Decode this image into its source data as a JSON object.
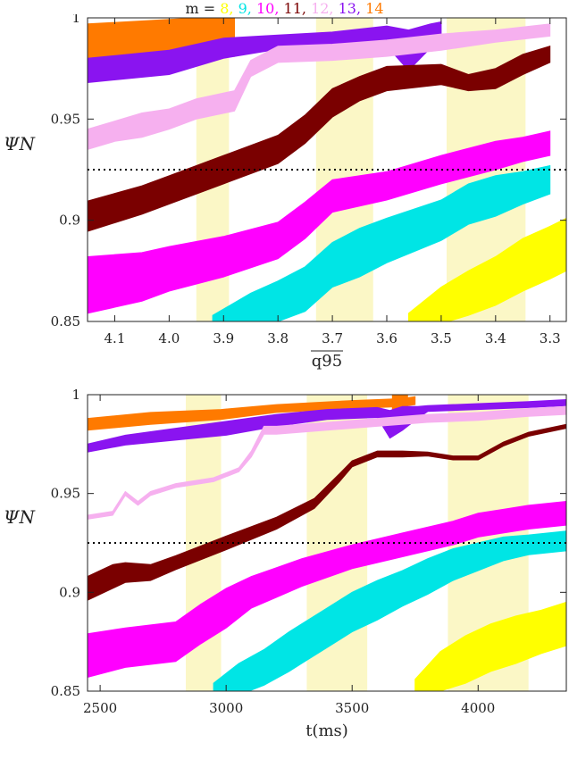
{
  "legend": {
    "prefix": "m =",
    "entries": [
      {
        "label": "8,",
        "color": "#ffff00"
      },
      {
        "label": "9,",
        "color": "#00e5e5"
      },
      {
        "label": "10,",
        "color": "#ff00ff"
      },
      {
        "label": "11,",
        "color": "#7a0000"
      },
      {
        "label": "12,",
        "color": "#f6b0ef"
      },
      {
        "label": "13,",
        "color": "#8a14f0"
      },
      {
        "label": "14",
        "color": "#ff7a00"
      }
    ]
  },
  "chart_data": [
    {
      "type": "area",
      "xlabel": "q95",
      "ylabel": "ΨN",
      "x_reversed": true,
      "xlim": [
        4.15,
        3.27
      ],
      "ylim": [
        0.85,
        1.0
      ],
      "x_ticks": [
        "4.1",
        "4.0",
        "3.9",
        "3.8",
        "3.7",
        "3.6",
        "3.5",
        "3.4",
        "3.3"
      ],
      "x_tick_values": [
        4.1,
        4.0,
        3.9,
        3.8,
        3.7,
        3.6,
        3.5,
        3.4,
        3.3
      ],
      "y_ticks": [
        "0.85",
        "0.9",
        "0.95",
        "1"
      ],
      "y_tick_values": [
        0.85,
        0.9,
        0.95,
        1.0
      ],
      "reference_line": 0.925,
      "shaded_x_ranges": [
        [
          3.95,
          3.89
        ],
        [
          3.73,
          3.625
        ],
        [
          3.49,
          3.345
        ]
      ],
      "series": [
        {
          "color": "#ff7a00",
          "x": [
            4.15,
            3.88
          ],
          "center": [
            0.987,
            0.991
          ],
          "width": [
            0.02,
            0.02
          ]
        },
        {
          "color": "#8a14f0",
          "x": [
            4.15,
            4.0,
            3.9,
            3.8,
            3.7,
            3.6,
            3.56,
            3.52,
            3.5
          ],
          "center": [
            0.974,
            0.978,
            0.985,
            0.988,
            0.99,
            0.991,
            0.984,
            0.991,
            0.995
          ],
          "width": [
            0.012,
            0.012,
            0.01,
            0.007,
            0.006,
            0.01,
            0.02,
            0.012,
            0.006
          ]
        },
        {
          "color": "#f6b0ef",
          "x": [
            4.15,
            4.1,
            4.05,
            4.0,
            3.95,
            3.88,
            3.85,
            3.8,
            3.7,
            3.6,
            3.5,
            3.4,
            3.3
          ],
          "center": [
            0.94,
            0.944,
            0.947,
            0.95,
            0.955,
            0.959,
            0.975,
            0.982,
            0.983,
            0.985,
            0.988,
            0.991,
            0.994
          ],
          "width": [
            0.01,
            0.01,
            0.012,
            0.01,
            0.01,
            0.01,
            0.008,
            0.008,
            0.008,
            0.008,
            0.008,
            0.006,
            0.006
          ]
        },
        {
          "color": "#7a0000",
          "x": [
            4.15,
            4.05,
            4.0,
            3.9,
            3.8,
            3.75,
            3.7,
            3.65,
            3.6,
            3.5,
            3.45,
            3.4,
            3.35,
            3.3
          ],
          "center": [
            0.902,
            0.91,
            0.915,
            0.925,
            0.935,
            0.945,
            0.958,
            0.965,
            0.97,
            0.972,
            0.968,
            0.97,
            0.977,
            0.982
          ],
          "width": [
            0.015,
            0.014,
            0.014,
            0.014,
            0.014,
            0.014,
            0.014,
            0.012,
            0.012,
            0.01,
            0.008,
            0.01,
            0.01,
            0.008
          ]
        },
        {
          "color": "#ff00ff",
          "x": [
            4.15,
            4.05,
            4.0,
            3.9,
            3.8,
            3.75,
            3.7,
            3.6,
            3.5,
            3.4,
            3.35,
            3.3
          ],
          "center": [
            0.868,
            0.872,
            0.876,
            0.882,
            0.89,
            0.9,
            0.912,
            0.917,
            0.925,
            0.932,
            0.935,
            0.938
          ],
          "width": [
            0.028,
            0.024,
            0.022,
            0.02,
            0.018,
            0.018,
            0.016,
            0.014,
            0.014,
            0.014,
            0.012,
            0.012
          ]
        },
        {
          "color": "#00e5e5",
          "x": [
            3.92,
            3.85,
            3.8,
            3.75,
            3.7,
            3.65,
            3.6,
            3.5,
            3.45,
            3.4,
            3.35,
            3.3
          ],
          "center": [
            0.848,
            0.856,
            0.86,
            0.866,
            0.878,
            0.884,
            0.89,
            0.9,
            0.908,
            0.912,
            0.916,
            0.92
          ],
          "width": [
            0.01,
            0.016,
            0.02,
            0.022,
            0.022,
            0.024,
            0.022,
            0.02,
            0.02,
            0.02,
            0.016,
            0.014
          ]
        },
        {
          "color": "#ffff00",
          "x": [
            3.56,
            3.5,
            3.45,
            3.4,
            3.35,
            3.3,
            3.27
          ],
          "center": [
            0.85,
            0.858,
            0.864,
            0.87,
            0.878,
            0.884,
            0.888
          ],
          "width": [
            0.008,
            0.018,
            0.022,
            0.024,
            0.026,
            0.026,
            0.026
          ]
        }
      ]
    },
    {
      "type": "area",
      "xlabel": "t(ms)",
      "ylabel": "ΨN",
      "xlim": [
        2450,
        4350
      ],
      "ylim": [
        0.85,
        1.0
      ],
      "x_ticks": [
        "2500",
        "3000",
        "3500",
        "4000"
      ],
      "x_tick_values": [
        2500,
        3000,
        3500,
        4000
      ],
      "y_ticks": [
        "0.85",
        "0.9",
        "0.95",
        "1"
      ],
      "y_tick_values": [
        0.85,
        0.9,
        0.95,
        1.0
      ],
      "reference_line": 0.925,
      "shaded_x_ranges": [
        [
          2840,
          2980
        ],
        [
          3320,
          3560
        ],
        [
          3880,
          4200
        ]
      ],
      "series": [
        {
          "color": "#ff7a00",
          "x": [
            2450,
            2700,
            2980,
            3200,
            3500,
            3700,
            3750
          ],
          "center": [
            0.985,
            0.988,
            0.99,
            0.993,
            0.995,
            0.996,
            0.997
          ],
          "width": [
            0.006,
            0.006,
            0.005,
            0.004,
            0.004,
            0.004,
            0.004
          ]
        },
        {
          "color": "#ff7a00",
          "x": [
            3660,
            3700,
            3720
          ],
          "center": [
            0.996,
            0.996,
            0.996
          ],
          "width": [
            0.012,
            0.012,
            0.012
          ]
        },
        {
          "color": "#8a14f0",
          "x": [
            2450,
            2600,
            2800,
            3000,
            3200,
            3400,
            3600,
            3650,
            3700,
            3760,
            3800,
            4000,
            4200,
            4350
          ],
          "center": [
            0.973,
            0.977,
            0.98,
            0.983,
            0.987,
            0.99,
            0.991,
            0.985,
            0.988,
            0.991,
            0.993,
            0.994,
            0.995,
            0.996
          ],
          "width": [
            0.004,
            0.005,
            0.006,
            0.007,
            0.006,
            0.005,
            0.005,
            0.014,
            0.012,
            0.006,
            0.003,
            0.003,
            0.003,
            0.003
          ]
        },
        {
          "color": "#f6b0ef",
          "x": [
            2450,
            2550,
            2600,
            2650,
            2700,
            2800,
            2950,
            3050,
            3100,
            3150,
            3200,
            3400,
            3600,
            3800,
            4000,
            4200,
            4350
          ],
          "center": [
            0.938,
            0.94,
            0.95,
            0.945,
            0.95,
            0.954,
            0.957,
            0.962,
            0.97,
            0.982,
            0.982,
            0.984,
            0.986,
            0.988,
            0.989,
            0.991,
            0.992
          ],
          "width": [
            0.002,
            0.002,
            0.002,
            0.002,
            0.002,
            0.002,
            0.002,
            0.002,
            0.003,
            0.004,
            0.004,
            0.004,
            0.004,
            0.004,
            0.004,
            0.004,
            0.004
          ]
        },
        {
          "color": "#7a0000",
          "x": [
            2450,
            2550,
            2600,
            2700,
            2800,
            3000,
            3200,
            3350,
            3450,
            3500,
            3600,
            3700,
            3800,
            3900,
            4000,
            4100,
            4200,
            4350
          ],
          "center": [
            0.902,
            0.908,
            0.91,
            0.91,
            0.915,
            0.925,
            0.935,
            0.945,
            0.958,
            0.965,
            0.97,
            0.97,
            0.97,
            0.968,
            0.968,
            0.975,
            0.98,
            0.984
          ],
          "width": [
            0.012,
            0.012,
            0.01,
            0.008,
            0.007,
            0.007,
            0.006,
            0.005,
            0.004,
            0.003,
            0.003,
            0.003,
            0.002,
            0.002,
            0.002,
            0.002,
            0.002,
            0.002
          ]
        },
        {
          "color": "#ff00ff",
          "x": [
            2450,
            2600,
            2800,
            2900,
            3000,
            3100,
            3200,
            3300,
            3500,
            3700,
            3900,
            4000,
            4100,
            4200,
            4350
          ],
          "center": [
            0.868,
            0.872,
            0.875,
            0.884,
            0.892,
            0.9,
            0.905,
            0.91,
            0.918,
            0.924,
            0.93,
            0.934,
            0.936,
            0.938,
            0.94
          ],
          "width": [
            0.022,
            0.02,
            0.02,
            0.02,
            0.02,
            0.016,
            0.015,
            0.014,
            0.012,
            0.012,
            0.012,
            0.012,
            0.012,
            0.012,
            0.012
          ]
        },
        {
          "color": "#00e5e5",
          "x": [
            2950,
            3050,
            3150,
            3250,
            3300,
            3400,
            3500,
            3600,
            3700,
            3800,
            3900,
            4000,
            4100,
            4200,
            4350
          ],
          "center": [
            0.85,
            0.856,
            0.862,
            0.87,
            0.874,
            0.882,
            0.89,
            0.896,
            0.902,
            0.908,
            0.914,
            0.918,
            0.922,
            0.924,
            0.926
          ],
          "width": [
            0.008,
            0.016,
            0.018,
            0.02,
            0.02,
            0.02,
            0.02,
            0.02,
            0.018,
            0.018,
            0.016,
            0.014,
            0.012,
            0.01,
            0.01
          ]
        },
        {
          "color": "#ffff00",
          "x": [
            3750,
            3850,
            3950,
            4050,
            4150,
            4250,
            4350
          ],
          "center": [
            0.852,
            0.86,
            0.866,
            0.872,
            0.876,
            0.88,
            0.884
          ],
          "width": [
            0.008,
            0.02,
            0.024,
            0.024,
            0.024,
            0.022,
            0.022
          ]
        }
      ]
    }
  ]
}
